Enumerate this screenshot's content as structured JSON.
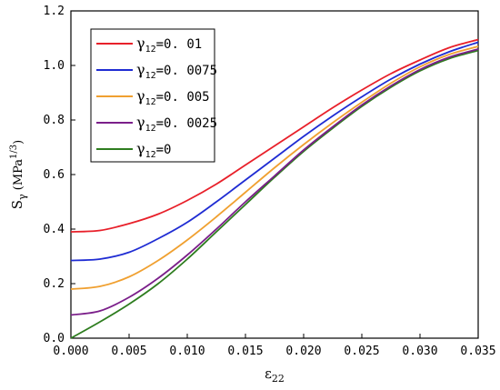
{
  "chart_data": {
    "type": "line",
    "xlabel": "ε",
    "xlabel_sub": "22",
    "ylabel_main": "S",
    "ylabel_sub": "γ",
    "ylabel_unit_open": " (MPa",
    "ylabel_unit_sup": "1/3",
    "ylabel_unit_close": ")",
    "xlim": [
      0,
      0.035
    ],
    "ylim": [
      0,
      1.2
    ],
    "xticks": [
      "0.000",
      "0.005",
      "0.010",
      "0.015",
      "0.020",
      "0.025",
      "0.030",
      "0.035"
    ],
    "yticks": [
      "0.0",
      "0.2",
      "0.4",
      "0.6",
      "0.8",
      "1.0",
      "1.2"
    ],
    "legend_position": "top-left",
    "x": [
      0,
      0.0025,
      0.005,
      0.0075,
      0.01,
      0.0125,
      0.015,
      0.0175,
      0.02,
      0.0225,
      0.025,
      0.0275,
      0.03,
      0.0325,
      0.035
    ],
    "series": [
      {
        "name": "γ12=0. 01",
        "legend_sym": "γ",
        "legend_sub": "12",
        "legend_rest": "=0. 01",
        "color": "#e8202a",
        "values": [
          0.39,
          0.395,
          0.42,
          0.455,
          0.505,
          0.565,
          0.635,
          0.705,
          0.775,
          0.845,
          0.91,
          0.97,
          1.02,
          1.065,
          1.095
        ]
      },
      {
        "name": "γ12=0. 0075",
        "legend_sym": "γ",
        "legend_sub": "12",
        "legend_rest": "=0. 0075",
        "color": "#1f2cd3",
        "values": [
          0.285,
          0.29,
          0.315,
          0.365,
          0.425,
          0.5,
          0.58,
          0.66,
          0.74,
          0.815,
          0.885,
          0.95,
          1.005,
          1.05,
          1.085
        ]
      },
      {
        "name": "γ12=0. 005",
        "legend_sym": "γ",
        "legend_sub": "12",
        "legend_rest": "=0. 005",
        "color": "#f0a030",
        "values": [
          0.18,
          0.19,
          0.225,
          0.285,
          0.36,
          0.445,
          0.535,
          0.625,
          0.71,
          0.79,
          0.865,
          0.935,
          0.995,
          1.04,
          1.07
        ]
      },
      {
        "name": "γ12=0. 0025",
        "legend_sym": "γ",
        "legend_sub": "12",
        "legend_rest": "=0. 0025",
        "color": "#7b1f8a",
        "values": [
          0.085,
          0.1,
          0.15,
          0.22,
          0.305,
          0.4,
          0.5,
          0.595,
          0.69,
          0.775,
          0.855,
          0.925,
          0.985,
          1.03,
          1.06
        ]
      },
      {
        "name": "γ12=0",
        "legend_sym": "γ",
        "legend_sub": "12",
        "legend_rest": "=0",
        "color": "#2e7d1f",
        "values": [
          0.0,
          0.06,
          0.125,
          0.2,
          0.29,
          0.39,
          0.49,
          0.59,
          0.685,
          0.77,
          0.85,
          0.92,
          0.98,
          1.025,
          1.055
        ]
      }
    ]
  }
}
